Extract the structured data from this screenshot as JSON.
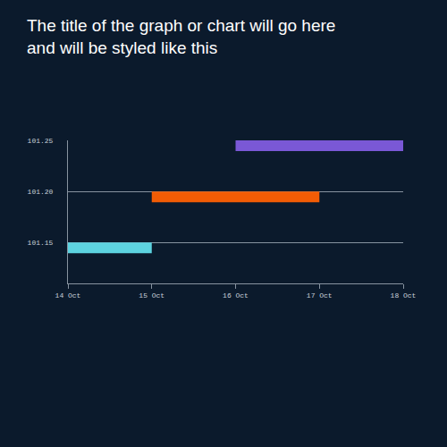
{
  "chart_data": {
    "type": "range_bar",
    "title": "The title of the graph or chart will go here\nand will be styled like this",
    "categories": [
      "14 Oct",
      "15 Oct",
      "16 Oct",
      "17 Oct",
      "18 Oct"
    ],
    "bars": [
      {
        "start": "14 Oct",
        "end": "15 Oct",
        "value": 101.15,
        "color": "#5dd3e0"
      },
      {
        "start": "15 Oct",
        "end": "17 Oct",
        "value": 101.2,
        "color": "#f25c05"
      },
      {
        "start": "16 Oct",
        "end": "18 Oct",
        "value": 101.25,
        "color": "#7a58d6"
      }
    ],
    "ylim": [
      101.11,
      101.25
    ],
    "yticks": [
      101.15,
      {
        "value": 101.2,
        "label": "101.20"
      },
      101.25
    ],
    "grid": true
  }
}
